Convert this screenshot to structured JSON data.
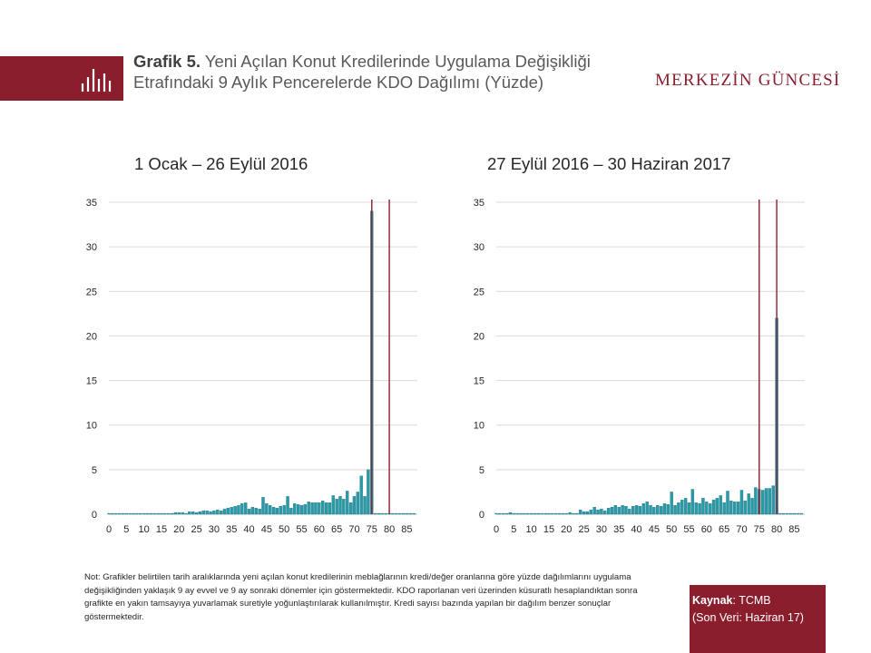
{
  "header": {
    "title_lead": "Grafik 5.",
    "title_rest": "Yeni Açılan Konut Kredilerinde  Uygulama Değişikliği  Etrafındaki 9 Aylık Pencerelerde KDO Dağılımı (Yüzde)",
    "brand": "MERKEZİN GÜNCESİ",
    "icon": "bar-chart-icon"
  },
  "colors": {
    "brand": "#8b1e2d",
    "bar": "#2a9aa8",
    "marker": "#8b1e2d",
    "grid": "#d9d9d9"
  },
  "note": "Not:  Grafikler belirtilen tarih aralıklarında yeni açılan konut kredilerinin meblağlarının kredi/değer oranlarına göre yüzde  dağılımlarını uygulama değişikliğinden yaklaşık 9 ay evvel ve 9 ay sonraki dönemler için göstermektedir.  KDO raporlanan veri üzerinden küsuratlı hesaplandıktan sonra grafikte en yakın tamsayıya yuvarlamak suretiyle yoğunlaştırılarak kullanılmıştır. Kredi sayısı bazında yapılan bir dağılım benzer sonuçlar göstermektedir.",
  "source": {
    "label": "Kaynak",
    "value": ": TCMB",
    "last": "(Son Veri:  Haziran 17)"
  },
  "chart_data": [
    {
      "type": "bar",
      "title": "1 Ocak – 26 Eylül 2016",
      "xlabel": "",
      "ylabel": "",
      "xlim": [
        0,
        88
      ],
      "ylim": [
        0,
        35
      ],
      "yticks": [
        "0",
        "5",
        "10",
        "15",
        "20",
        "25",
        "30",
        "35"
      ],
      "xticks": [
        "0",
        "5",
        "10",
        "15",
        "20",
        "25",
        "30",
        "35",
        "40",
        "45",
        "50",
        "55",
        "60",
        "65",
        "70",
        "75",
        "80",
        "85"
      ],
      "grid": true,
      "markers": [
        75,
        80
      ],
      "values": [
        0.1,
        0.1,
        0.1,
        0.1,
        0.1,
        0.1,
        0.1,
        0.1,
        0.1,
        0.1,
        0.1,
        0.1,
        0.1,
        0.1,
        0.1,
        0.1,
        0.1,
        0.1,
        0.1,
        0.2,
        0.2,
        0.2,
        0.1,
        0.3,
        0.3,
        0.2,
        0.3,
        0.4,
        0.4,
        0.3,
        0.4,
        0.5,
        0.4,
        0.6,
        0.7,
        0.8,
        0.9,
        1.0,
        1.2,
        1.3,
        0.6,
        0.8,
        0.7,
        0.6,
        1.9,
        1.2,
        1.0,
        0.8,
        0.7,
        0.9,
        1.0,
        2.0,
        0.7,
        1.2,
        1.1,
        1.0,
        1.1,
        1.4,
        1.3,
        1.3,
        1.3,
        1.5,
        1.3,
        1.3,
        2.1,
        1.7,
        2.0,
        1.7,
        2.6,
        1.3,
        2.0,
        2.5,
        4.3,
        2.0,
        5.0,
        34.0,
        0.1,
        0.1,
        0.1,
        0.1,
        0.1,
        0.1,
        0.1,
        0.1,
        0.1,
        0.1,
        0.1,
        0.1
      ]
    },
    {
      "type": "bar",
      "title": "27 Eylül 2016 – 30 Haziran  2017",
      "xlabel": "",
      "ylabel": "",
      "xlim": [
        0,
        88
      ],
      "ylim": [
        0,
        35
      ],
      "yticks": [
        "0",
        "5",
        "10",
        "15",
        "20",
        "25",
        "30",
        "35"
      ],
      "xticks": [
        "0",
        "5",
        "10",
        "15",
        "20",
        "25",
        "30",
        "35",
        "40",
        "45",
        "50",
        "55",
        "60",
        "65",
        "70",
        "75",
        "80",
        "85"
      ],
      "grid": true,
      "markers": [
        75,
        80
      ],
      "values": [
        0.1,
        0.1,
        0.1,
        0.1,
        0.2,
        0.1,
        0.1,
        0.1,
        0.1,
        0.1,
        0.1,
        0.1,
        0.1,
        0.1,
        0.1,
        0.1,
        0.1,
        0.1,
        0.1,
        0.1,
        0.1,
        0.2,
        0.1,
        0.1,
        0.5,
        0.3,
        0.3,
        0.5,
        0.8,
        0.5,
        0.6,
        0.4,
        0.7,
        0.8,
        1.0,
        0.8,
        1.0,
        0.9,
        0.6,
        0.9,
        1.0,
        0.9,
        1.2,
        1.4,
        1.0,
        0.8,
        1.0,
        0.9,
        1.2,
        1.1,
        2.5,
        1.0,
        1.3,
        1.6,
        1.8,
        1.3,
        2.8,
        1.3,
        1.2,
        1.8,
        1.4,
        1.2,
        1.6,
        1.8,
        2.1,
        1.3,
        2.6,
        1.5,
        1.4,
        1.4,
        2.7,
        1.5,
        2.3,
        1.8,
        3.0,
        2.8,
        2.7,
        2.9,
        2.9,
        3.2,
        22.0,
        0.1,
        0.1,
        0.1,
        0.1,
        0.1,
        0.1,
        0.1
      ]
    }
  ]
}
